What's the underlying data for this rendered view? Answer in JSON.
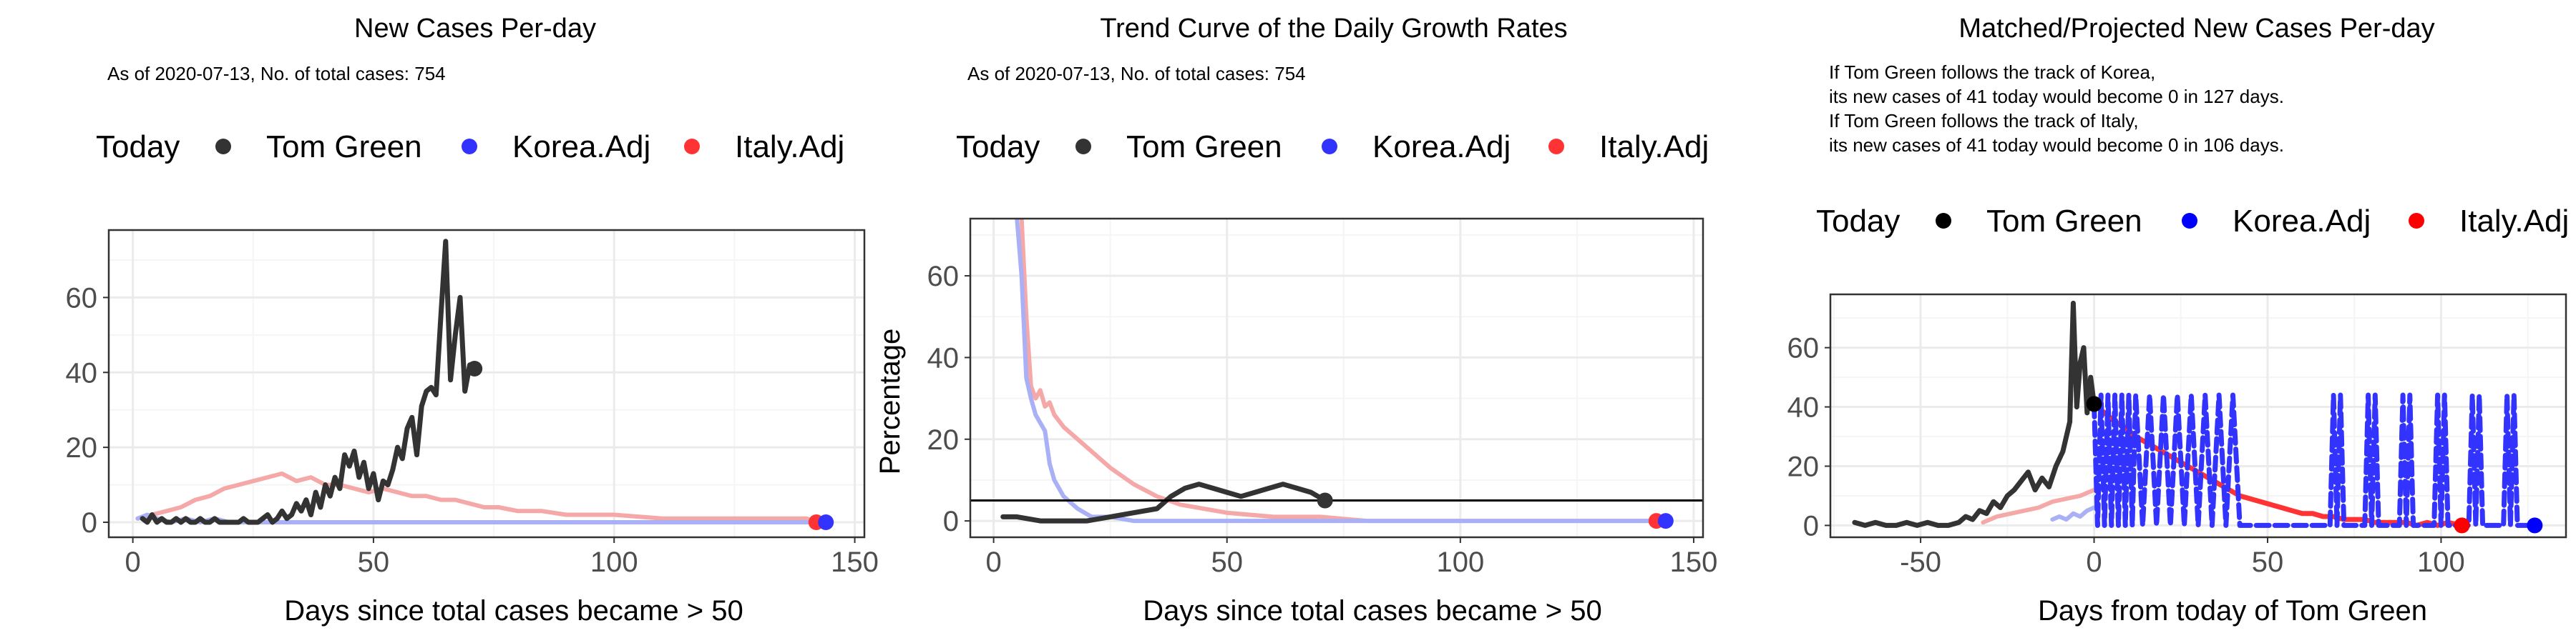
{
  "panels": [
    {
      "title": "New Cases Per-day",
      "subtitle_lines": [
        "As of 2020-07-13, No. of total cases: 754"
      ],
      "legend": {
        "title": "Today",
        "items": [
          "Tom Green",
          "Korea.Adj",
          "Italy.Adj"
        ]
      },
      "xlabel": "Days since total cases became > 50",
      "ylabel": ""
    },
    {
      "title": "Trend Curve of the Daily Growth Rates",
      "subtitle_lines": [
        "As of 2020-07-13, No. of total cases: 754"
      ],
      "legend": {
        "title": "Today",
        "items": [
          "Tom Green",
          "Korea.Adj",
          "Italy.Adj"
        ]
      },
      "xlabel": "Days since total cases became > 50",
      "ylabel": "Percentage"
    },
    {
      "title": "Matched/Projected New Cases Per-day",
      "subtitle_lines": [
        "If Tom Green follows the track of Korea,",
        "its new cases of 41 today would become 0 in 127 days.",
        "If Tom Green follows the track of Italy,",
        "its new cases of 41 today would become 0 in 106 days."
      ],
      "legend": {
        "title": "Today",
        "items": [
          "Tom Green",
          "Korea.Adj",
          "Italy.Adj"
        ]
      },
      "xlabel": "Days from today of Tom Green",
      "ylabel": ""
    }
  ],
  "colors": {
    "tom_green": "#333333",
    "korea": "#3333ff",
    "italy": "#ff3333",
    "korea_light": "#aab0f5",
    "italy_light": "#f5a8a8",
    "grid_major": "#ebebeb",
    "grid_minor": "#f5f5f5",
    "border": "#333333"
  },
  "chart_data": [
    {
      "type": "line",
      "xlim": [
        -5,
        152
      ],
      "ylim": [
        -4,
        78
      ],
      "xticks": [
        0,
        50,
        100,
        150
      ],
      "xtick_labels": [
        "0",
        "50",
        "100",
        "150"
      ],
      "yticks": [
        0,
        20,
        40,
        60
      ],
      "ytick_labels": [
        "0",
        "20",
        "40",
        "60"
      ],
      "series": [
        {
          "name": "Italy.Adj",
          "style": "italy_light",
          "x": [
            1,
            4,
            7,
            10,
            13,
            16,
            19,
            22,
            25,
            28,
            31,
            34,
            37,
            40,
            43,
            46,
            49,
            52,
            55,
            58,
            61,
            64,
            67,
            70,
            73,
            76,
            80,
            85,
            90,
            95,
            100,
            110,
            120,
            130,
            140,
            142
          ],
          "y": [
            1,
            2,
            3,
            4,
            6,
            7,
            9,
            10,
            11,
            12,
            13,
            11,
            12,
            10,
            10,
            9,
            8,
            9,
            8,
            7,
            7,
            6,
            6,
            5,
            4,
            4,
            3,
            3,
            2,
            2,
            2,
            1,
            1,
            1,
            1,
            0
          ]
        },
        {
          "name": "Korea.Adj",
          "style": "korea_light",
          "x": [
            1,
            3,
            5,
            8,
            11,
            14,
            17,
            20,
            25,
            30,
            40,
            50,
            60,
            80,
            100,
            120,
            140,
            144
          ],
          "y": [
            1,
            2,
            1,
            0,
            1,
            0,
            1,
            0,
            0,
            0,
            0,
            0,
            0,
            0,
            0,
            0,
            0,
            0
          ]
        },
        {
          "name": "Tom Green",
          "style": "tom_green",
          "x": [
            2,
            3,
            4,
            5,
            6,
            7,
            8,
            9,
            10,
            11,
            12,
            13,
            14,
            15,
            16,
            17,
            18,
            19,
            20,
            21,
            22,
            23,
            24,
            25,
            26,
            27,
            28,
            29,
            30,
            31,
            32,
            33,
            34,
            35,
            36,
            37,
            38,
            39,
            40,
            41,
            42,
            43,
            44,
            45,
            46,
            47,
            48,
            49,
            50,
            51,
            52,
            53,
            54,
            55,
            56,
            57,
            58,
            59,
            60,
            61,
            62,
            63,
            64,
            65,
            66,
            67,
            68,
            69,
            70,
            71
          ],
          "y": [
            1,
            0,
            2,
            0,
            1,
            0,
            0,
            1,
            0,
            1,
            0,
            0,
            1,
            0,
            0,
            1,
            0,
            0,
            0,
            0,
            0,
            1,
            0,
            0,
            0,
            1,
            2,
            0,
            1,
            3,
            1,
            2,
            5,
            3,
            6,
            2,
            8,
            4,
            10,
            7,
            12,
            9,
            18,
            15,
            19,
            12,
            16,
            9,
            13,
            6,
            11,
            10,
            14,
            20,
            17,
            25,
            28,
            18,
            31,
            35,
            36,
            34,
            55,
            75,
            38,
            50,
            60,
            35,
            42,
            41
          ]
        }
      ],
      "today_points": [
        {
          "name": "Tom Green",
          "x": 71,
          "y": 41
        },
        {
          "name": "Italy.Adj",
          "x": 142,
          "y": 0
        },
        {
          "name": "Korea.Adj",
          "x": 144,
          "y": 0
        }
      ],
      "hline": null
    },
    {
      "type": "line",
      "xlim": [
        -5,
        152
      ],
      "ylim": [
        -4,
        74
      ],
      "xticks": [
        0,
        50,
        100,
        150
      ],
      "xtick_labels": [
        "0",
        "50",
        "100",
        "150"
      ],
      "yticks": [
        0,
        20,
        40,
        60
      ],
      "ytick_labels": [
        "0",
        "20",
        "40",
        "60"
      ],
      "series": [
        {
          "name": "Italy.Adj",
          "style": "italy_light",
          "x": [
            6,
            7,
            8,
            9,
            10,
            11,
            12,
            13,
            15,
            18,
            21,
            25,
            30,
            35,
            40,
            45,
            50,
            60,
            70,
            80,
            100,
            120,
            142
          ],
          "y": [
            74,
            50,
            33,
            30,
            32,
            28,
            29,
            26,
            23,
            20,
            17,
            13,
            9,
            6,
            4,
            3,
            2,
            1,
            1,
            0,
            0,
            0,
            0
          ]
        },
        {
          "name": "Korea.Adj",
          "style": "korea_light",
          "x": [
            5,
            6,
            7,
            8,
            9,
            10,
            11,
            12,
            13,
            15,
            18,
            21,
            25,
            30,
            40,
            50,
            70,
            100,
            144
          ],
          "y": [
            74,
            60,
            35,
            30,
            26,
            24,
            22,
            14,
            10,
            6,
            3,
            1,
            1,
            0,
            0,
            0,
            0,
            0,
            0
          ]
        },
        {
          "name": "Tom Green",
          "style": "tom_green",
          "x": [
            2,
            5,
            10,
            15,
            20,
            25,
            30,
            35,
            38,
            41,
            44,
            47,
            50,
            53,
            56,
            59,
            62,
            65,
            68,
            71
          ],
          "y": [
            1,
            1,
            0,
            0,
            0,
            1,
            2,
            3,
            6,
            8,
            9,
            8,
            7,
            6,
            7,
            8,
            9,
            8,
            7,
            5
          ]
        }
      ],
      "today_points": [
        {
          "name": "Tom Green",
          "x": 71,
          "y": 5
        },
        {
          "name": "Italy.Adj",
          "x": 142,
          "y": 0
        },
        {
          "name": "Korea.Adj",
          "x": 144,
          "y": 0
        }
      ],
      "hline": 5
    },
    {
      "type": "line",
      "xlim": [
        -76,
        136
      ],
      "ylim": [
        -4,
        78
      ],
      "xticks": [
        -50,
        0,
        50,
        100
      ],
      "xtick_labels": [
        "-50",
        "0",
        "50",
        "100"
      ],
      "yticks": [
        0,
        20,
        40,
        60
      ],
      "ytick_labels": [
        "0",
        "20",
        "40",
        "60"
      ],
      "series": [
        {
          "name": "Italy.Adj (matched)",
          "style": "italy_light",
          "x": [
            -32,
            -28,
            -24,
            -20,
            -16,
            -12,
            -8,
            -4,
            0
          ],
          "y": [
            1,
            3,
            4,
            5,
            6,
            8,
            9,
            10,
            12
          ]
        },
        {
          "name": "Korea.Adj (matched)",
          "style": "korea_light",
          "x": [
            -12,
            -10,
            -8,
            -6,
            -4,
            -2,
            0
          ],
          "y": [
            2,
            3,
            2,
            4,
            3,
            5,
            6
          ]
        },
        {
          "name": "Tom Green",
          "style": "tom_green",
          "x": [
            -69,
            -66,
            -63,
            -60,
            -57,
            -54,
            -51,
            -48,
            -45,
            -42,
            -39,
            -37,
            -35,
            -33,
            -31,
            -29,
            -27,
            -25,
            -23,
            -21,
            -19,
            -17,
            -15,
            -13,
            -11,
            -9,
            -7,
            -6,
            -5,
            -4,
            -3,
            -2,
            -1,
            0
          ],
          "y": [
            1,
            0,
            1,
            0,
            0,
            1,
            0,
            1,
            0,
            0,
            1,
            3,
            2,
            5,
            4,
            8,
            6,
            10,
            12,
            15,
            18,
            12,
            16,
            13,
            20,
            25,
            35,
            75,
            40,
            55,
            60,
            38,
            50,
            41
          ]
        },
        {
          "name": "Italy.Adj",
          "style": "italy",
          "x": [
            0,
            3,
            6,
            9,
            12,
            15,
            18,
            21,
            24,
            27,
            30,
            33,
            36,
            39,
            42,
            45,
            48,
            51,
            54,
            57,
            60,
            63,
            66,
            69,
            72,
            75,
            78,
            81,
            84,
            87,
            90,
            93,
            96,
            99,
            102,
            106
          ],
          "y": [
            41,
            38,
            35,
            33,
            30,
            28,
            26,
            24,
            22,
            20,
            18,
            16,
            14,
            12,
            10,
            9,
            8,
            7,
            6,
            5,
            4,
            4,
            3,
            3,
            2,
            2,
            2,
            1,
            1,
            1,
            1,
            0,
            1,
            0,
            1,
            0
          ]
        },
        {
          "name": "Korea.Adj",
          "style": "korea",
          "x": [
            0,
            1,
            2,
            3,
            4,
            5,
            6,
            7,
            8,
            9,
            10,
            11,
            12,
            14,
            16,
            18,
            20,
            22,
            24,
            26,
            28,
            30,
            32,
            34,
            36,
            38,
            40,
            42,
            50,
            60,
            68,
            69,
            70,
            71,
            72,
            78,
            79,
            80,
            81,
            82,
            88,
            89,
            90,
            91,
            92,
            98,
            99,
            100,
            101,
            102,
            108,
            109,
            110,
            111,
            112,
            118,
            119,
            120,
            121,
            122,
            127
          ],
          "y": [
            41,
            0,
            44,
            0,
            44,
            0,
            44,
            0,
            44,
            0,
            44,
            0,
            44,
            0,
            44,
            0,
            44,
            0,
            44,
            0,
            44,
            0,
            44,
            0,
            44,
            0,
            44,
            0,
            0,
            0,
            0,
            44,
            0,
            44,
            0,
            0,
            44,
            0,
            44,
            0,
            0,
            44,
            0,
            44,
            0,
            0,
            44,
            0,
            44,
            0,
            0,
            44,
            0,
            44,
            0,
            0,
            44,
            0,
            44,
            0,
            0
          ]
        }
      ],
      "today_points": [
        {
          "name": "Tom Green",
          "x": 0,
          "y": 41
        },
        {
          "name": "Italy.Adj",
          "x": 106,
          "y": 0
        },
        {
          "name": "Korea.Adj",
          "x": 127,
          "y": 0
        }
      ],
      "hline": null
    }
  ]
}
